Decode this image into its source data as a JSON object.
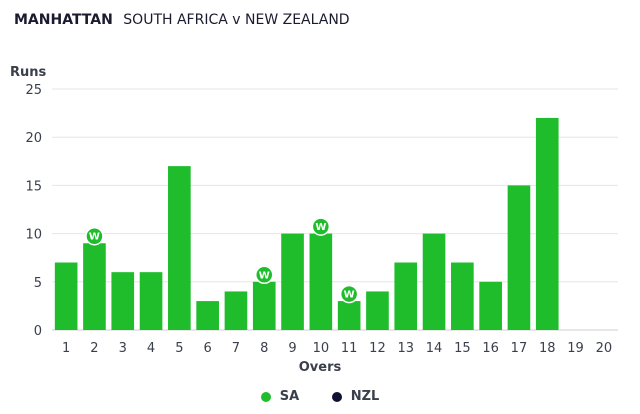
{
  "header": {
    "brand": "MANHATTAN",
    "match": "SOUTH AFRICA v NEW ZEALAND"
  },
  "colors": {
    "sa": "#1fbd2c",
    "nzl": "#111133",
    "grid": "#e6e6e6",
    "axis": "#cfcfcf"
  },
  "legend": [
    {
      "name": "SA",
      "color": "#1fbd2c"
    },
    {
      "name": "NZL",
      "color": "#111133"
    }
  ],
  "chart_data": {
    "type": "bar",
    "ylabel": "Runs",
    "xlabel": "Overs",
    "ylim": [
      0,
      25
    ],
    "yticks": [
      0,
      5,
      10,
      15,
      20,
      25
    ],
    "grid": true,
    "legend_position": "bottom-center",
    "categories": [
      "1",
      "2",
      "3",
      "4",
      "5",
      "6",
      "7",
      "8",
      "9",
      "10",
      "11",
      "12",
      "13",
      "14",
      "15",
      "16",
      "17",
      "18",
      "19",
      "20"
    ],
    "series": [
      {
        "name": "SA",
        "values": [
          7,
          9,
          6,
          6,
          17,
          3,
          4,
          5,
          10,
          10,
          3,
          4,
          7,
          10,
          7,
          5,
          15,
          22,
          null,
          null
        ],
        "wickets": [
          0,
          1,
          0,
          0,
          0,
          0,
          0,
          1,
          0,
          1,
          1,
          0,
          0,
          0,
          0,
          0,
          0,
          0,
          0,
          0
        ]
      },
      {
        "name": "NZL",
        "values": [
          null,
          null,
          null,
          null,
          null,
          null,
          null,
          null,
          null,
          null,
          null,
          null,
          null,
          null,
          null,
          null,
          null,
          null,
          null,
          null
        ],
        "wickets": [
          0,
          0,
          0,
          0,
          0,
          0,
          0,
          0,
          0,
          0,
          0,
          0,
          0,
          0,
          0,
          0,
          0,
          0,
          0,
          0
        ]
      }
    ],
    "wicket_marker_label": "W"
  }
}
